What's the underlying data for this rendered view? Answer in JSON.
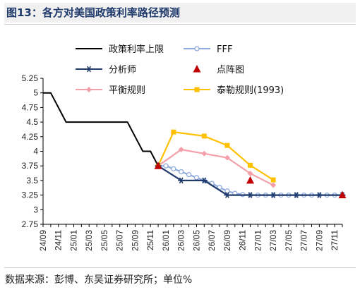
{
  "header": {
    "title": "图13：各方对美国政策利率路径预测"
  },
  "footer": {
    "source": "数据来源：彭博、东吴证券研究所；单位%"
  },
  "chart_data": {
    "type": "line",
    "categories": [
      "24/09",
      "24/10",
      "24/11",
      "24/12",
      "25/01",
      "25/02",
      "25/03",
      "25/04",
      "25/05",
      "25/06",
      "25/07",
      "25/08",
      "25/09",
      "25/10",
      "25/11",
      "25/12",
      "26/01",
      "26/02",
      "26/03",
      "26/04",
      "26/05",
      "26/06",
      "26/07",
      "26/08",
      "26/09",
      "26/10",
      "26/11",
      "26/12",
      "27/01",
      "27/02",
      "27/03",
      "27/04",
      "27/05",
      "27/06",
      "27/07",
      "27/08",
      "27/09",
      "27/10",
      "27/11",
      "27/12"
    ],
    "tick_labels": [
      "24/09",
      "24/11",
      "25/01",
      "25/03",
      "25/05",
      "25/07",
      "25/09",
      "25/11",
      "26/01",
      "26/03",
      "26/05",
      "26/07",
      "26/09",
      "26/11",
      "27/01",
      "27/03",
      "27/05",
      "27/07",
      "27/09",
      "27/11"
    ],
    "ylim": [
      2.75,
      5.25
    ],
    "yticks": [
      "2.75",
      "3",
      "3.25",
      "3.5",
      "3.75",
      "4",
      "4.25",
      "4.5",
      "4.75",
      "5",
      "5.25"
    ],
    "series": [
      {
        "name": "政策利率上限",
        "color": "#000000",
        "marker": "none",
        "x": [
          "24/09",
          "24/10",
          "24/11",
          "24/12",
          "25/01",
          "25/02",
          "25/03",
          "25/04",
          "25/05",
          "25/06",
          "25/07",
          "25/08",
          "25/09",
          "25/10",
          "25/11",
          "25/12"
        ],
        "values": [
          5.0,
          5.0,
          4.75,
          4.5,
          4.5,
          4.5,
          4.5,
          4.5,
          4.5,
          4.5,
          4.5,
          4.5,
          4.25,
          4.0,
          4.0,
          3.75
        ]
      },
      {
        "name": "FFF",
        "color": "#8faadc",
        "marker": "circle",
        "x": [
          "25/12",
          "26/01",
          "26/02",
          "26/03",
          "26/04",
          "26/05",
          "26/06",
          "26/07",
          "26/08",
          "26/09",
          "26/10",
          "26/11",
          "26/12",
          "27/01",
          "27/02",
          "27/03",
          "27/04",
          "27/05",
          "27/06",
          "27/07",
          "27/08",
          "27/09",
          "27/10",
          "27/11",
          "27/12"
        ],
        "values": [
          3.75,
          3.75,
          3.7,
          3.65,
          3.6,
          3.55,
          3.5,
          3.45,
          3.38,
          3.32,
          3.28,
          3.26,
          3.25,
          3.25,
          3.25,
          3.25,
          3.25,
          3.25,
          3.25,
          3.25,
          3.25,
          3.25,
          3.25,
          3.25,
          3.25
        ]
      },
      {
        "name": "分析师",
        "color": "#1f3a6b",
        "marker": "asterisk",
        "x": [
          "25/12",
          "26/03",
          "26/06",
          "26/09",
          "26/12",
          "27/03",
          "27/06",
          "27/09",
          "27/12"
        ],
        "values": [
          3.75,
          3.5,
          3.5,
          3.25,
          3.25,
          3.25,
          3.25,
          3.25,
          3.25
        ]
      },
      {
        "name": "点阵图",
        "color": "#c00000",
        "marker": "triangle",
        "line": false,
        "x": [
          "25/12",
          "26/12",
          "27/12"
        ],
        "values": [
          3.75,
          3.5,
          3.25
        ]
      },
      {
        "name": "平衡规则",
        "color": "#f4a0aa",
        "marker": "diamond",
        "x": [
          "25/12",
          "26/03",
          "26/06",
          "26/09",
          "26/12",
          "27/03"
        ],
        "values": [
          3.75,
          4.03,
          3.96,
          3.89,
          3.62,
          3.42
        ]
      },
      {
        "name": "泰勒规则(1993)",
        "color": "#ffc000",
        "marker": "square",
        "x": [
          "25/12",
          "26/02",
          "26/06",
          "26/09",
          "26/12",
          "27/03"
        ],
        "values": [
          3.75,
          4.33,
          4.26,
          4.1,
          3.76,
          3.51
        ]
      }
    ],
    "legend_position": "top"
  }
}
